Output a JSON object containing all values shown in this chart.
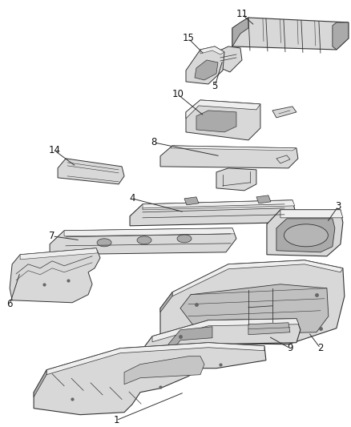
{
  "background_color": "#ffffff",
  "fig_width": 4.38,
  "fig_height": 5.33,
  "dpi": 100,
  "line_color": "#333333",
  "label_fontsize": 8.5,
  "label_color": "#111111",
  "part_fill": "#d8d8d8",
  "part_edge": "#333333",
  "part_dark": "#aaaaaa",
  "part_light": "#eeeeee"
}
